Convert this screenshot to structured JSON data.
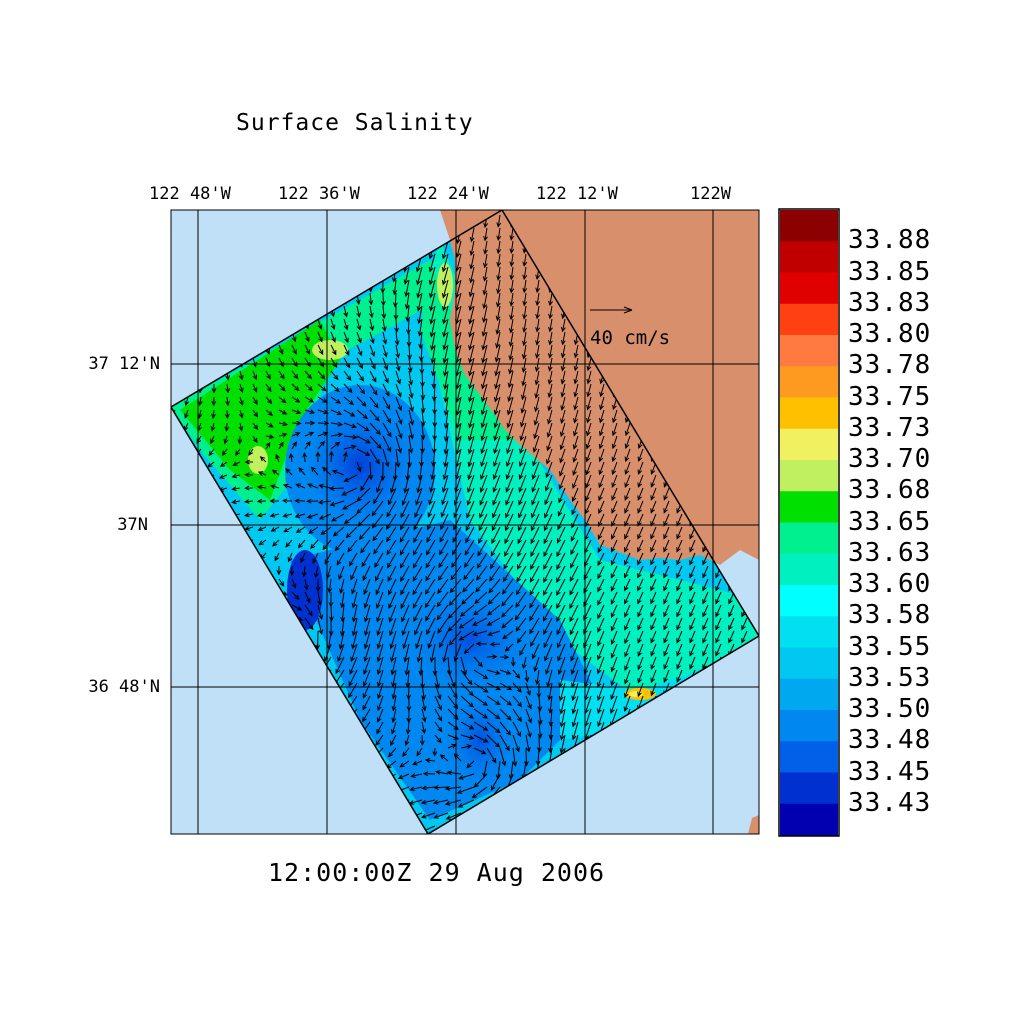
{
  "title": "Surface Salinity",
  "timestamp": "12:00:00Z  29 Aug 2006",
  "longitude_labels": [
    "122 48'W",
    "122 36'W",
    "122 24'W",
    "122 12'W",
    "122W"
  ],
  "latitude_labels": [
    "37 12'N",
    "37N",
    "36 48'N"
  ],
  "reference_vector": {
    "label": "40 cm/s"
  },
  "colorbar": {
    "labels": [
      "33.88",
      "33.85",
      "33.83",
      "33.80",
      "33.78",
      "33.75",
      "33.73",
      "33.70",
      "33.68",
      "33.65",
      "33.63",
      "33.60",
      "33.58",
      "33.55",
      "33.53",
      "33.50",
      "33.48",
      "33.45",
      "33.43"
    ],
    "colors": [
      "#8b0000",
      "#c00000",
      "#e00000",
      "#ff4010",
      "#ff7a40",
      "#ff9a20",
      "#ffc000",
      "#f0f060",
      "#c0f060",
      "#00e000",
      "#00f090",
      "#00f0c0",
      "#00ffff",
      "#00e0f0",
      "#00c8f0",
      "#00a8f0",
      "#0088f0",
      "#0060e8",
      "#0030d0",
      "#0000b0"
    ]
  },
  "colors": {
    "ocean": "#c0e0f8",
    "land": "#d8906c",
    "domain_outline": "#000000"
  }
}
